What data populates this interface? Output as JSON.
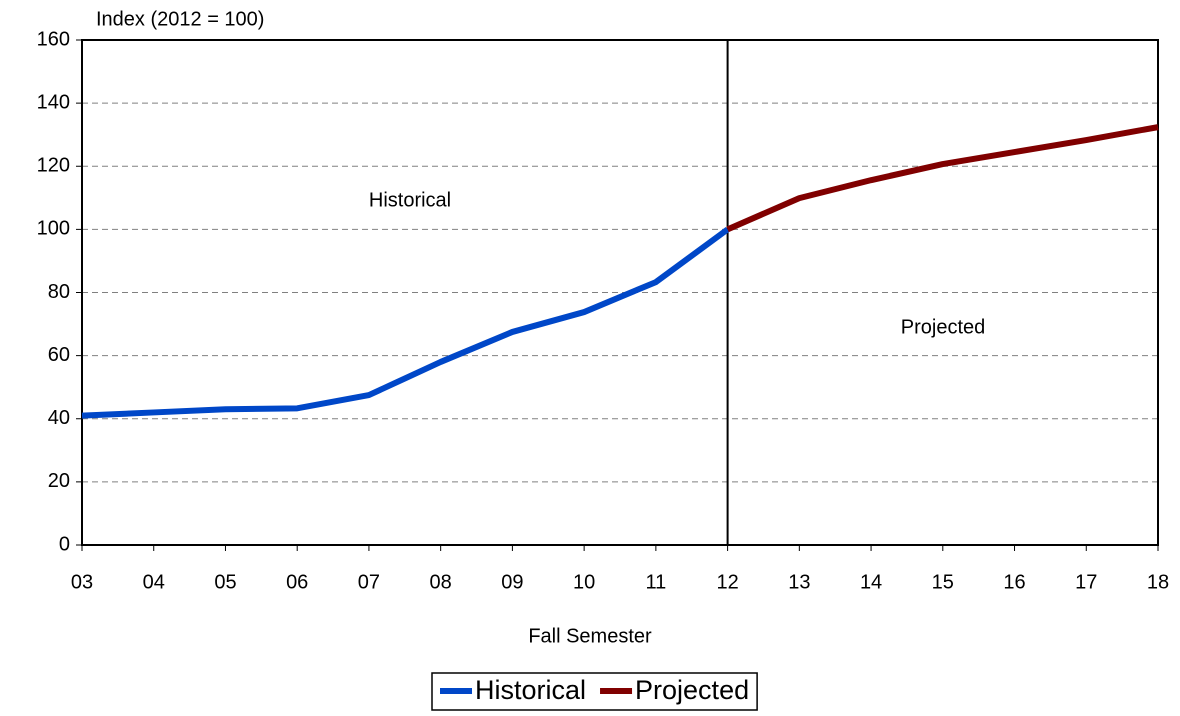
{
  "chart_data": {
    "type": "line",
    "y_label": "Index (2012 = 100)",
    "x_label": "Fall Semester",
    "categories": [
      "03",
      "04",
      "05",
      "06",
      "07",
      "08",
      "09",
      "10",
      "11",
      "12",
      "13",
      "14",
      "15",
      "16",
      "17",
      "18"
    ],
    "series": [
      {
        "name": "Historical",
        "color": "#0047c8",
        "values": [
          41,
          42,
          43,
          43.3,
          47.5,
          58,
          67.5,
          73.8,
          83.3,
          100,
          null,
          null,
          null,
          null,
          null,
          null
        ]
      },
      {
        "name": "Projected",
        "color": "#800000",
        "values": [
          null,
          null,
          null,
          null,
          null,
          null,
          null,
          null,
          null,
          100,
          109.9,
          115.6,
          120.7,
          124.5,
          128.3,
          132.4
        ]
      }
    ],
    "annotations": [
      "Historical",
      "Projected"
    ],
    "ylim": [
      0,
      160
    ],
    "yticks": [
      0,
      20,
      40,
      60,
      80,
      100,
      120,
      140,
      160
    ],
    "grid": true
  }
}
